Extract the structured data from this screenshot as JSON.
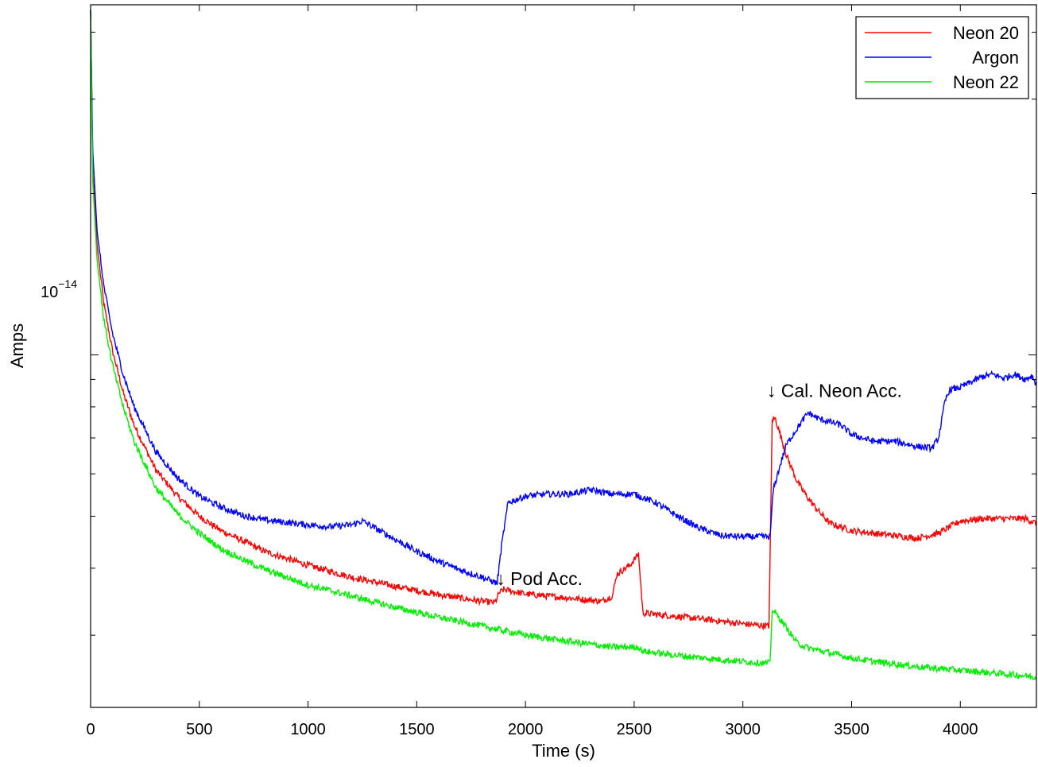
{
  "chart_data": {
    "type": "line",
    "title": "",
    "xlabel": "Time (s)",
    "ylabel": "Amps",
    "xlim": [
      0,
      4350
    ],
    "ylim": [
      2.2e-15,
      4.5e-14
    ],
    "yscale": "log",
    "xticks": [
      0,
      500,
      1000,
      1500,
      2000,
      2500,
      3000,
      3500,
      4000
    ],
    "xtick_labels": [
      "0",
      "500",
      "1000",
      "1500",
      "2000",
      "2500",
      "3000",
      "3500",
      "4000"
    ],
    "ytick_label": {
      "base": "10",
      "exponent": "−14",
      "value": 1e-14
    },
    "grid": false,
    "legend_position": "top-right",
    "series": [
      {
        "name": "Neon 20",
        "color": "#ff0000",
        "points": [
          [
            0,
            4.4e-14
          ],
          [
            10,
            2.2e-14
          ],
          [
            30,
            1.6e-14
          ],
          [
            60,
            1.25e-14
          ],
          [
            100,
            1.02e-14
          ],
          [
            150,
            8.5e-15
          ],
          [
            200,
            7.4e-15
          ],
          [
            300,
            6.1e-15
          ],
          [
            400,
            5.45e-15
          ],
          [
            500,
            5e-15
          ],
          [
            600,
            4.7e-15
          ],
          [
            700,
            4.5e-15
          ],
          [
            800,
            4.3e-15
          ],
          [
            1000,
            4.05e-15
          ],
          [
            1200,
            3.85e-15
          ],
          [
            1400,
            3.7e-15
          ],
          [
            1600,
            3.57e-15
          ],
          [
            1800,
            3.47e-15
          ],
          [
            1860,
            3.45e-15
          ],
          [
            1880,
            3.6e-15
          ],
          [
            1900,
            3.65e-15
          ],
          [
            2000,
            3.58e-15
          ],
          [
            2200,
            3.52e-15
          ],
          [
            2350,
            3.47e-15
          ],
          [
            2400,
            3.55e-15
          ],
          [
            2420,
            3.9e-15
          ],
          [
            2480,
            4.05e-15
          ],
          [
            2520,
            4.25e-15
          ],
          [
            2540,
            3.3e-15
          ],
          [
            2600,
            3.28e-15
          ],
          [
            2800,
            3.22e-15
          ],
          [
            3000,
            3.15e-15
          ],
          [
            3120,
            3.12e-15
          ],
          [
            3135,
            7.6e-15
          ],
          [
            3150,
            7.6e-15
          ],
          [
            3200,
            6.5e-15
          ],
          [
            3250,
            5.8e-15
          ],
          [
            3300,
            5.4e-15
          ],
          [
            3350,
            5.1e-15
          ],
          [
            3400,
            4.85e-15
          ],
          [
            3500,
            4.7e-15
          ],
          [
            3600,
            4.65e-15
          ],
          [
            3700,
            4.6e-15
          ],
          [
            3800,
            4.55e-15
          ],
          [
            3900,
            4.65e-15
          ],
          [
            4000,
            4.9e-15
          ],
          [
            4100,
            4.95e-15
          ],
          [
            4200,
            4.95e-15
          ],
          [
            4300,
            4.95e-15
          ],
          [
            4350,
            4.85e-15
          ]
        ]
      },
      {
        "name": "Argon",
        "color": "#0000ff",
        "points": [
          [
            0,
            4.4e-14
          ],
          [
            10,
            2.4e-14
          ],
          [
            30,
            1.7e-14
          ],
          [
            60,
            1.35e-14
          ],
          [
            100,
            1.1e-14
          ],
          [
            150,
            9.2e-15
          ],
          [
            200,
            8e-15
          ],
          [
            300,
            6.6e-15
          ],
          [
            400,
            5.9e-15
          ],
          [
            500,
            5.45e-15
          ],
          [
            600,
            5.2e-15
          ],
          [
            700,
            5.02e-15
          ],
          [
            800,
            4.92e-15
          ],
          [
            1000,
            4.82e-15
          ],
          [
            1100,
            4.78e-15
          ],
          [
            1200,
            4.82e-15
          ],
          [
            1250,
            4.9e-15
          ],
          [
            1350,
            4.65e-15
          ],
          [
            1500,
            4.3e-15
          ],
          [
            1600,
            4.12e-15
          ],
          [
            1700,
            3.97e-15
          ],
          [
            1800,
            3.85e-15
          ],
          [
            1870,
            3.75e-15
          ],
          [
            1890,
            4.4e-15
          ],
          [
            1920,
            5.3e-15
          ],
          [
            2000,
            5.45e-15
          ],
          [
            2100,
            5.5e-15
          ],
          [
            2200,
            5.5e-15
          ],
          [
            2300,
            5.6e-15
          ],
          [
            2400,
            5.5e-15
          ],
          [
            2500,
            5.5e-15
          ],
          [
            2600,
            5.3e-15
          ],
          [
            2700,
            5e-15
          ],
          [
            2800,
            4.75e-15
          ],
          [
            2900,
            4.6e-15
          ],
          [
            3000,
            4.58e-15
          ],
          [
            3100,
            4.58e-15
          ],
          [
            3125,
            4.58e-15
          ],
          [
            3140,
            5.6e-15
          ],
          [
            3170,
            6.2e-15
          ],
          [
            3200,
            6.8e-15
          ],
          [
            3250,
            7.3e-15
          ],
          [
            3300,
            7.8e-15
          ],
          [
            3350,
            7.6e-15
          ],
          [
            3450,
            7.4e-15
          ],
          [
            3500,
            7.1e-15
          ],
          [
            3600,
            6.9e-15
          ],
          [
            3700,
            6.9e-15
          ],
          [
            3800,
            6.75e-15
          ],
          [
            3870,
            6.7e-15
          ],
          [
            3900,
            7e-15
          ],
          [
            3930,
            8.2e-15
          ],
          [
            3950,
            8.6e-15
          ],
          [
            4000,
            8.7e-15
          ],
          [
            4050,
            8.9e-15
          ],
          [
            4100,
            9.1e-15
          ],
          [
            4150,
            9.2e-15
          ],
          [
            4200,
            9.05e-15
          ],
          [
            4250,
            9.2e-15
          ],
          [
            4300,
            9e-15
          ],
          [
            4330,
            9.15e-15
          ],
          [
            4350,
            8.8e-15
          ]
        ]
      },
      {
        "name": "Neon 22",
        "color": "#00ee00",
        "points": [
          [
            0,
            4.4e-14
          ],
          [
            10,
            2.1e-14
          ],
          [
            30,
            1.5e-14
          ],
          [
            60,
            1.17e-14
          ],
          [
            100,
            9.6e-15
          ],
          [
            150,
            8e-15
          ],
          [
            200,
            6.9e-15
          ],
          [
            300,
            5.65e-15
          ],
          [
            400,
            5.05e-15
          ],
          [
            500,
            4.65e-15
          ],
          [
            600,
            4.35e-15
          ],
          [
            700,
            4.15e-15
          ],
          [
            800,
            3.98e-15
          ],
          [
            1000,
            3.72e-15
          ],
          [
            1200,
            3.55e-15
          ],
          [
            1400,
            3.38e-15
          ],
          [
            1600,
            3.24e-15
          ],
          [
            1800,
            3.12e-15
          ],
          [
            2000,
            3e-15
          ],
          [
            2200,
            2.92e-15
          ],
          [
            2400,
            2.85e-15
          ],
          [
            2520,
            2.85e-15
          ],
          [
            2540,
            2.8e-15
          ],
          [
            2700,
            2.75e-15
          ],
          [
            2900,
            2.7e-15
          ],
          [
            3100,
            2.66e-15
          ],
          [
            3125,
            2.66e-15
          ],
          [
            3135,
            3.35e-15
          ],
          [
            3150,
            3.3e-15
          ],
          [
            3200,
            3.1e-15
          ],
          [
            3250,
            2.9e-15
          ],
          [
            3300,
            2.84e-15
          ],
          [
            3400,
            2.78e-15
          ],
          [
            3500,
            2.72e-15
          ],
          [
            3600,
            2.68e-15
          ],
          [
            3700,
            2.65e-15
          ],
          [
            3800,
            2.62e-15
          ],
          [
            3900,
            2.6e-15
          ],
          [
            4000,
            2.58e-15
          ],
          [
            4100,
            2.56e-15
          ],
          [
            4200,
            2.54e-15
          ],
          [
            4300,
            2.52e-15
          ],
          [
            4350,
            2.5e-15
          ]
        ]
      }
    ],
    "annotations": [
      {
        "text": "↓ Pod Acc.",
        "x": 1880,
        "y": 3.72e-15
      },
      {
        "text": "↓ Cal. Neon Acc.",
        "x": 3125,
        "y": 8.35e-15
      }
    ]
  }
}
